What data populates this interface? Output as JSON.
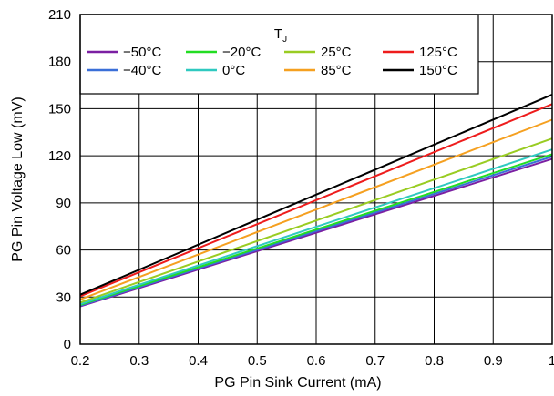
{
  "chart_data": {
    "type": "line",
    "title": "",
    "xlabel": "PG Pin Sink Current (mA)",
    "ylabel": "PG Pin Voltage Low (mV)",
    "xlim": [
      0.2,
      1.0
    ],
    "ylim": [
      0,
      210
    ],
    "xticks": [
      0.2,
      0.3,
      0.4,
      0.5,
      0.6,
      0.7,
      0.8,
      0.9,
      1
    ],
    "xtick_labels": [
      "0.2",
      "0.3",
      "0.4",
      "0.5",
      "0.6",
      "0.7",
      "0.8",
      "0.9",
      "1"
    ],
    "yticks": [
      0,
      30,
      60,
      90,
      120,
      150,
      180,
      210
    ],
    "ytick_labels": [
      "0",
      "30",
      "60",
      "90",
      "120",
      "150",
      "180",
      "210"
    ],
    "grid": true,
    "legend": {
      "title_main": "T",
      "title_sub": "J",
      "placement": "top-left",
      "columns": 4
    },
    "x": [
      0.2,
      1.0
    ],
    "series": [
      {
        "name": "−50°C",
        "color": "#7b1fa2",
        "values": [
          24,
          118
        ]
      },
      {
        "name": "−40°C",
        "color": "#3a6fd8",
        "values": [
          24.5,
          119.5
        ]
      },
      {
        "name": "−20°C",
        "color": "#22dd22",
        "values": [
          25,
          121
        ]
      },
      {
        "name": "0°C",
        "color": "#2fc9c0",
        "values": [
          25.5,
          124
        ]
      },
      {
        "name": "25°C",
        "color": "#99cc22",
        "values": [
          26.5,
          131
        ]
      },
      {
        "name": "85°C",
        "color": "#f5a020",
        "values": [
          28.5,
          143
        ]
      },
      {
        "name": "125°C",
        "color": "#ee1c1c",
        "values": [
          30.5,
          153
        ]
      },
      {
        "name": "150°C",
        "color": "#000000",
        "values": [
          31.5,
          159
        ]
      }
    ]
  }
}
